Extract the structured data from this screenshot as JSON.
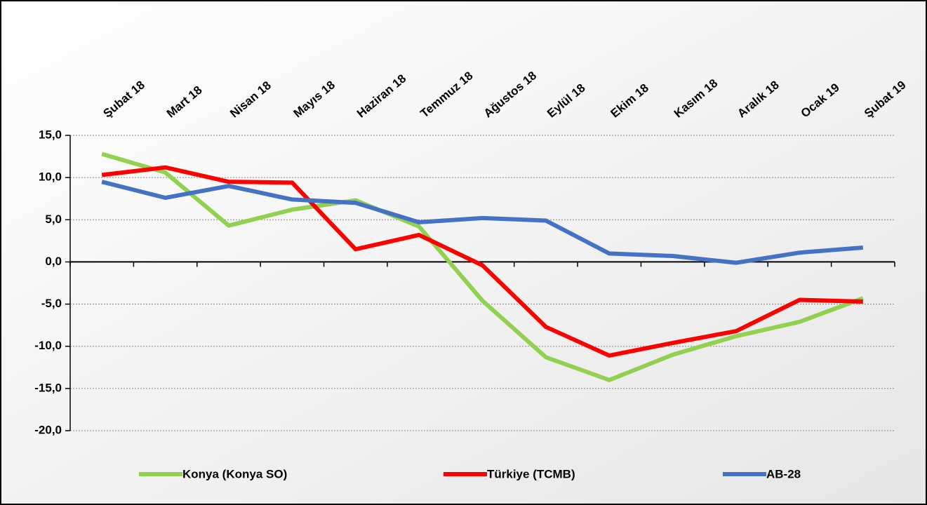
{
  "chart_data": {
    "type": "line",
    "categories": [
      "Şubat 18",
      "Mart 18",
      "Nisan 18",
      "Mayıs 18",
      "Haziran 18",
      "Temmuz 18",
      "Ağustos 18",
      "Eylül 18",
      "Ekim 18",
      "Kasım 18",
      "Aralık 18",
      "Ocak 19",
      "Şubat 19"
    ],
    "series": [
      {
        "name": "Konya (Konya SO)",
        "color": "#92d050",
        "values": [
          12.8,
          10.6,
          4.3,
          6.2,
          7.3,
          4.2,
          -4.6,
          -11.3,
          -14.0,
          -11.0,
          -8.8,
          -7.1,
          -4.3
        ]
      },
      {
        "name": "Türkiye (TCMB)",
        "color": "#ff0000",
        "values": [
          10.3,
          11.2,
          9.5,
          9.4,
          1.5,
          3.2,
          -0.4,
          -7.7,
          -11.1,
          -9.6,
          -8.2,
          -4.5,
          -4.7
        ]
      },
      {
        "name": "AB-28",
        "color": "#4472c4",
        "values": [
          9.5,
          7.6,
          9.0,
          7.4,
          7.0,
          4.7,
          5.2,
          4.9,
          1.0,
          0.7,
          -0.1,
          1.1,
          1.7
        ]
      }
    ],
    "ylim": [
      -20,
      15
    ],
    "yticks": [
      {
        "value": -20,
        "label": "-20,0"
      },
      {
        "value": -15,
        "label": "-15,0"
      },
      {
        "value": -10,
        "label": "-10,0"
      },
      {
        "value": -5,
        "label": "-5,0"
      },
      {
        "value": 0,
        "label": "0,0"
      },
      {
        "value": 5,
        "label": "5,0"
      },
      {
        "value": 10,
        "label": "10,0"
      },
      {
        "value": 15,
        "label": "15,0"
      }
    ],
    "grid": true
  }
}
